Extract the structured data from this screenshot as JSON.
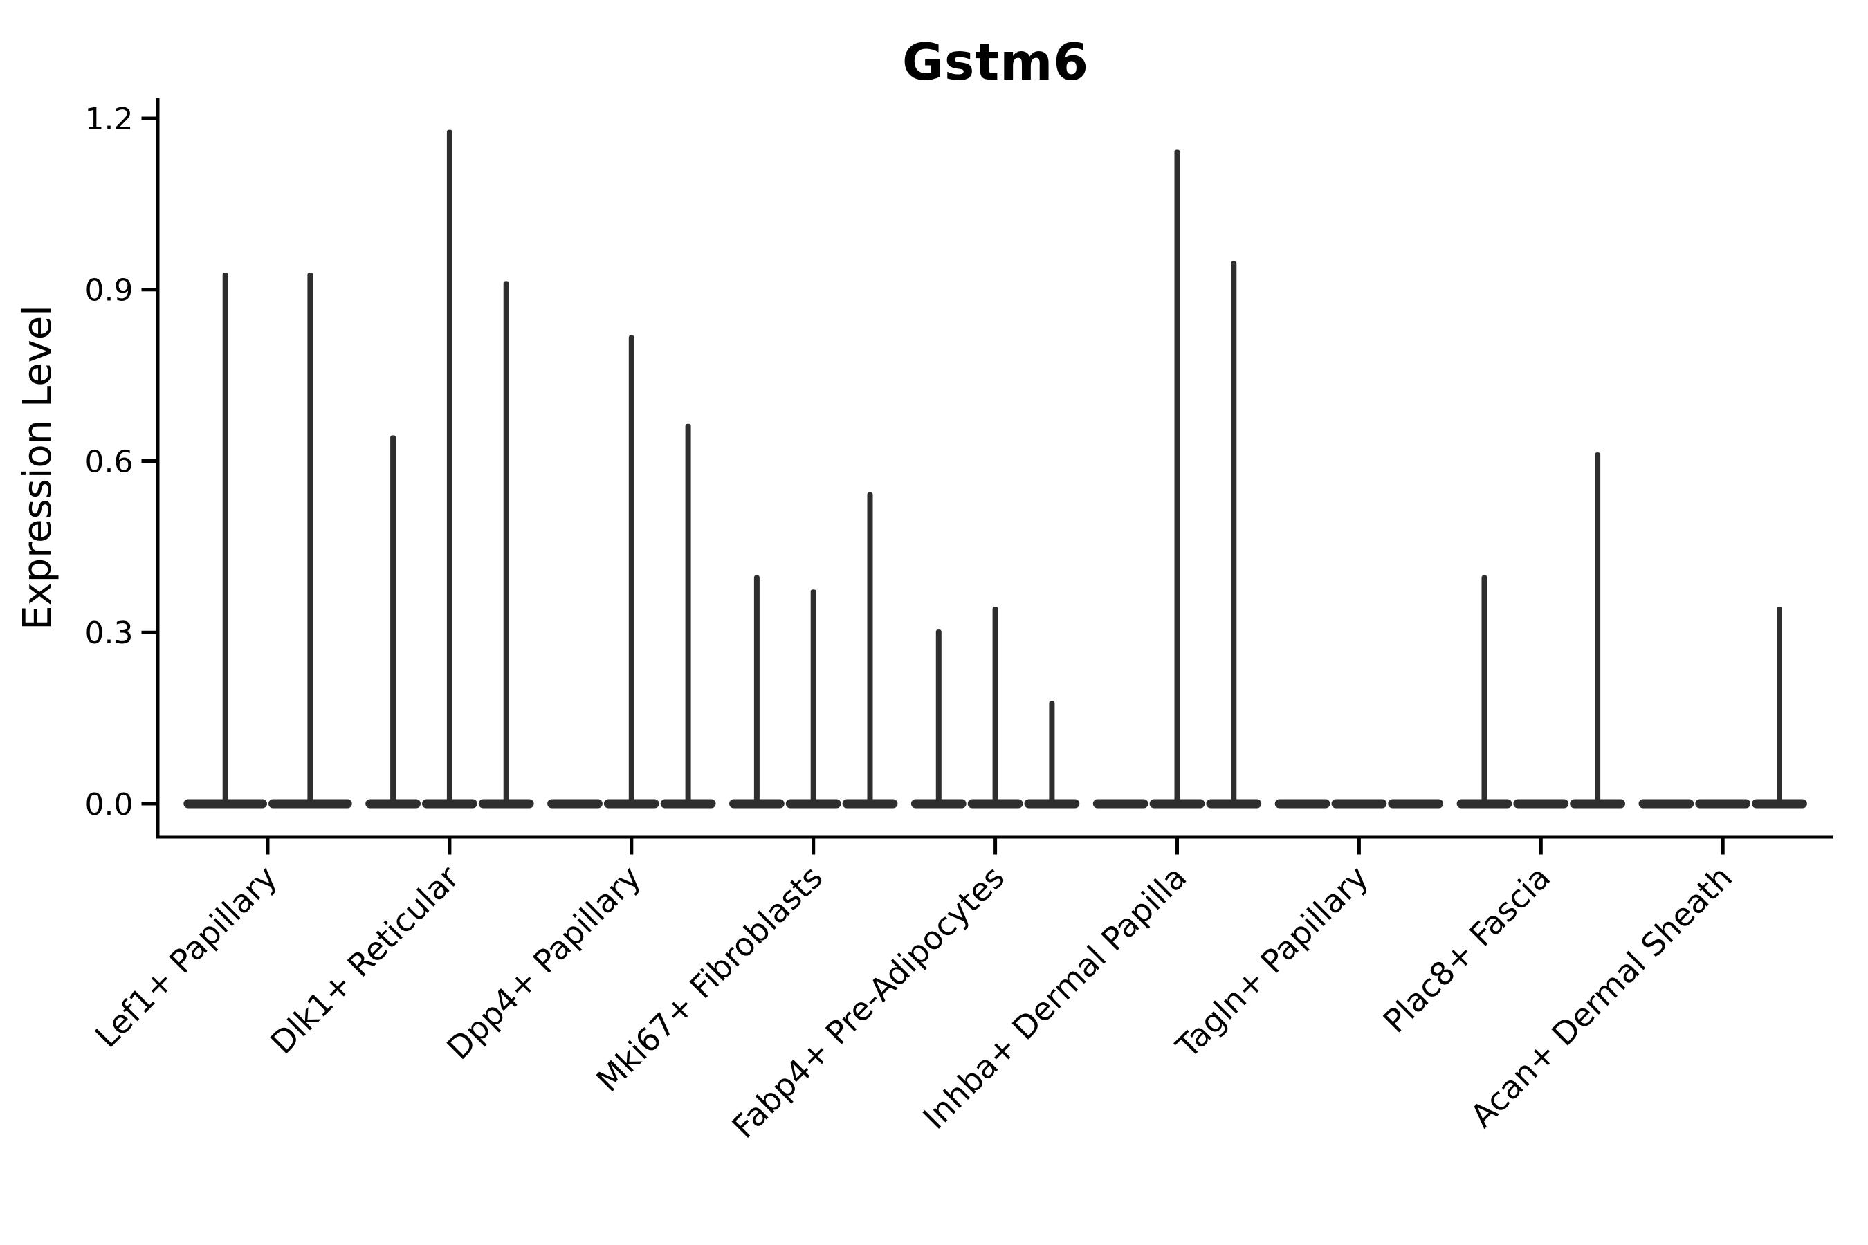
{
  "chart_data": {
    "type": "violin",
    "title": "Gstm6",
    "ylabel": "Expression Level",
    "xlabel": "",
    "ylim": [
      -0.058,
      1.238
    ],
    "yticks": [
      "0.0",
      "0.3",
      "0.6",
      "0.9",
      "1.2"
    ],
    "ytick_values": [
      0.0,
      0.3,
      0.6,
      0.9,
      1.2
    ],
    "grid": "off",
    "legend": "none",
    "categories": [
      "Lef1+ Papillary",
      "Dlk1+ Reticular",
      "Dpp4+ Papillary",
      "Mki67+ Fibroblasts",
      "Fabp4+ Pre-Adipocytes",
      "Inhba+ Dermal Papilla",
      "Tagln+ Papillary",
      "Plac8+ Fascia",
      "Acan+ Dermal Sheath"
    ],
    "groups": [
      {
        "label": "Lef1+ Papillary",
        "violin_max_values": [
          0.93,
          0.93
        ]
      },
      {
        "label": "Dlk1+ Reticular",
        "violin_max_values": [
          0.645,
          1.18,
          0.915
        ]
      },
      {
        "label": "Dpp4+ Papillary",
        "violin_max_values": [
          0,
          0.82,
          0.665
        ]
      },
      {
        "label": "Mki67+ Fibroblasts",
        "violin_max_values": [
          0.4,
          0.375,
          0.545
        ]
      },
      {
        "label": "Fabp4+ Pre-Adipocytes",
        "violin_max_values": [
          0.305,
          0.345,
          0.18
        ]
      },
      {
        "label": "Inhba+ Dermal Papilla",
        "violin_max_values": [
          0,
          1.145,
          0.95
        ]
      },
      {
        "label": "Tagln+ Papillary",
        "violin_max_values": [
          0,
          0,
          0
        ]
      },
      {
        "label": "Plac8+ Fascia",
        "violin_max_values": [
          0.4,
          0,
          0.615
        ]
      },
      {
        "label": "Acan+ Dermal Sheath",
        "violin_max_values": [
          0,
          0,
          0.345
        ]
      }
    ],
    "colors": {
      "violin": "#2e2e2e",
      "axis": "#000000",
      "text": "#000000",
      "background": "#ffffff"
    }
  }
}
